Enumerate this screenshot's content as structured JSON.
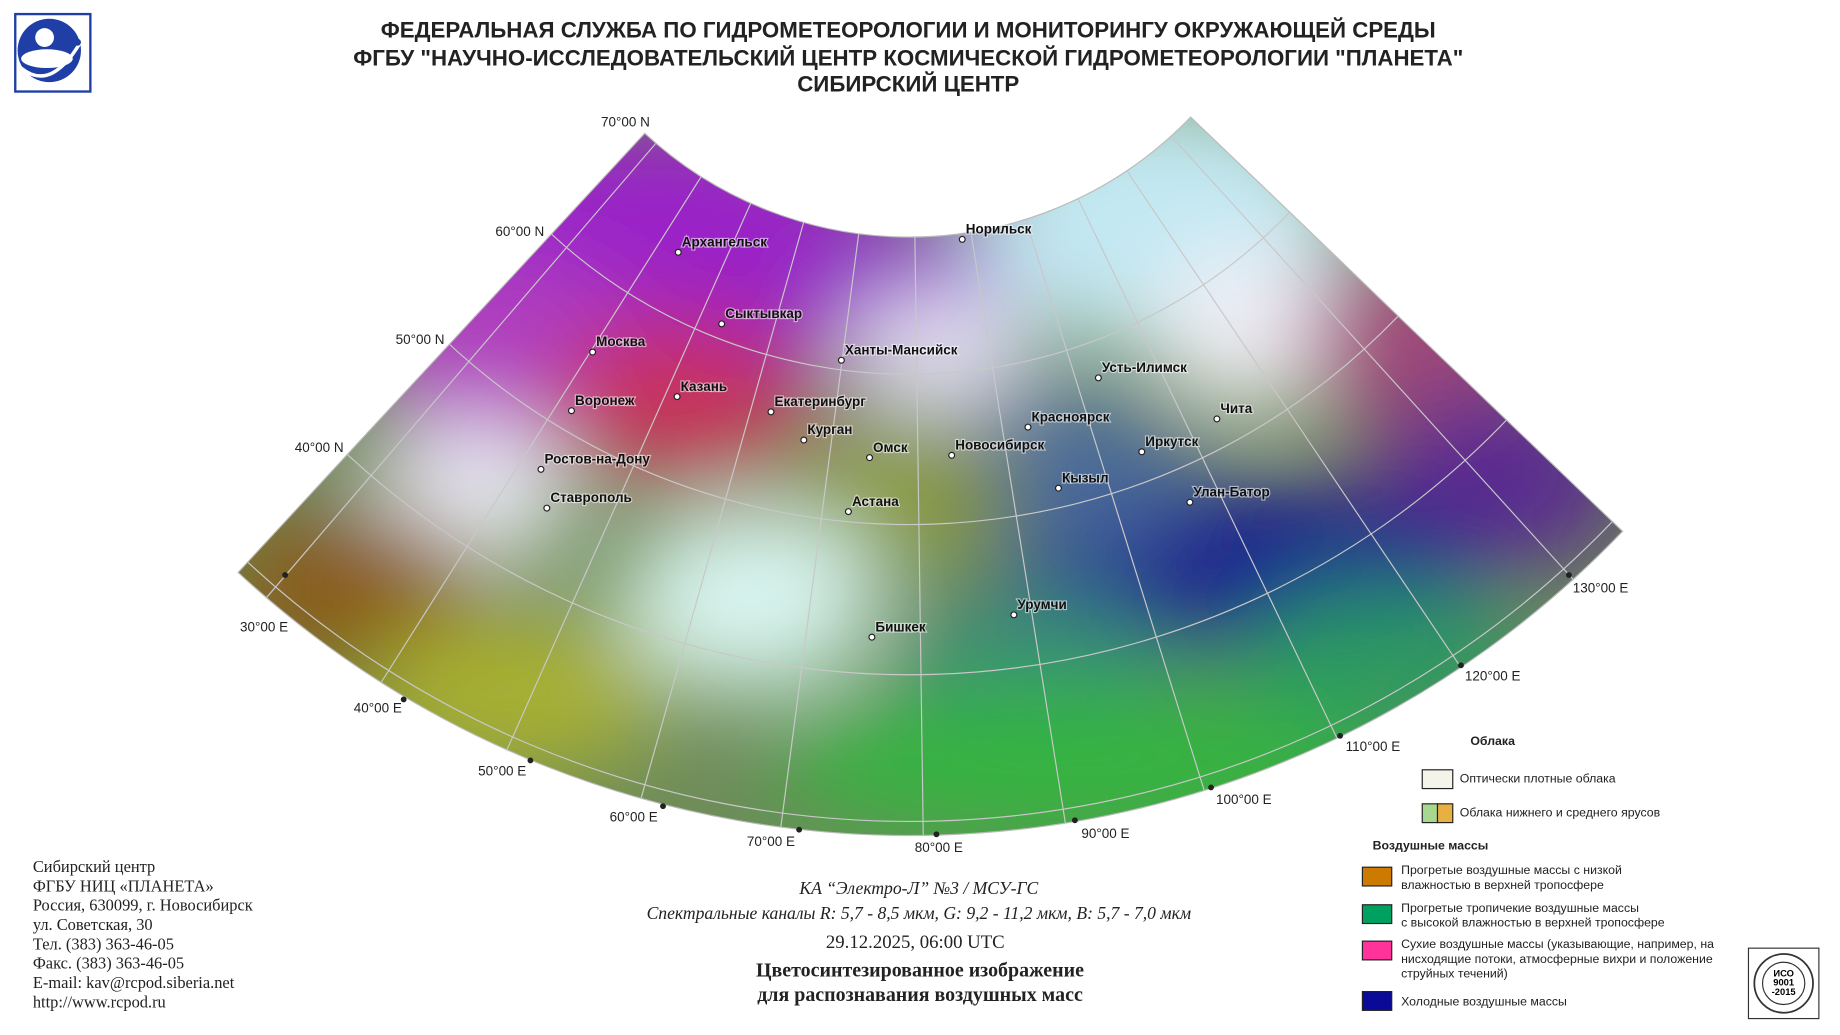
{
  "header": {
    "lines": [
      "ФЕДЕРАЛЬНАЯ СЛУЖБА ПО ГИДРОМЕТЕОРОЛОГИИ И МОНИТОРИНГУ ОКРУЖАЮЩЕЙ СРЕДЫ",
      "ФГБУ \"НАУЧНО-ИССЛЕДОВАТЕЛЬСКИЙ ЦЕНТР КОСМИЧЕСКОЙ ГИДРОМЕТЕОРОЛОГИИ \"ПЛАНЕТА\"",
      "СИБИРСКИЙ ЦЕНТР"
    ]
  },
  "map": {
    "latitude_labels": [
      "70°00 N",
      "60°00 N",
      "50°00 N",
      "40°00 N"
    ],
    "longitude_labels": [
      "30°00 E",
      "40°00 E",
      "50°00 E",
      "60°00 E",
      "70°00 E",
      "80°00 E",
      "90°00 E",
      "100°00 E",
      "110°00 E",
      "120°00 E",
      "130°00 E"
    ],
    "cities": [
      "Архангельск",
      "Норильск",
      "Сыктывкар",
      "Москва",
      "Ханты-Мансийск",
      "Казань",
      "Воронеж",
      "Екатеринбург",
      "Усть-Илимск",
      "Красноярск",
      "Чита",
      "Курган",
      "Омск",
      "Новосибирск",
      "Иркутск",
      "Ростов-на-Дону",
      "Кызыл",
      "Улан-Батор",
      "Ставрополь",
      "Астана",
      "Урумчи",
      "Бишкек"
    ]
  },
  "legend": {
    "clouds_title": "Облака",
    "clouds": [
      "Оптически плотные облака",
      "Облака нижнего и среднего ярусов"
    ],
    "air_title": "Воздушные массы",
    "air_masses": [
      {
        "lines": [
          "Прогретые воздушные массы с низкой",
          "влажностью в верхней тропосфере"
        ]
      },
      {
        "lines": [
          "Прогретые тропичекие воздушные массы",
          "с высокой влажностью в верхней тропосфере"
        ]
      },
      {
        "lines": [
          "Сухие воздушные массы (указывающие, например, на",
          "нисходящие потоки, атмосферные вихри и положение",
          "струйных течений)"
        ]
      },
      {
        "lines": [
          "Холодные воздушные массы"
        ]
      }
    ]
  },
  "contacts": [
    "Сибирский центр",
    "ФГБУ НИЦ «ПЛАНЕТА»",
    "Россия, 630099, г. Новосибирск",
    "ул. Советская, 30",
    "Тел. (383) 363-46-05",
    "Факс. (383) 363-46-05",
    "E-mail: kav@rcpod.siberia.net",
    "http://www.rcpod.ru"
  ],
  "caption": {
    "satellite": "КА “Электро-Л” №3 / МСУ-ГС",
    "channels": "Спектральные каналы R: 5,7 - 8,5 мкм, G: 9,2 - 11,2 мкм, B: 5,7 - 7,0 мкм",
    "datetime": "29.12.2025, 06:00 UTC",
    "title_lines": [
      "Цветосинтезированное изображение",
      "для распознавания воздушных масс"
    ]
  },
  "certificate": {
    "lines": [
      "ИСО",
      "9001",
      "-2015"
    ]
  }
}
